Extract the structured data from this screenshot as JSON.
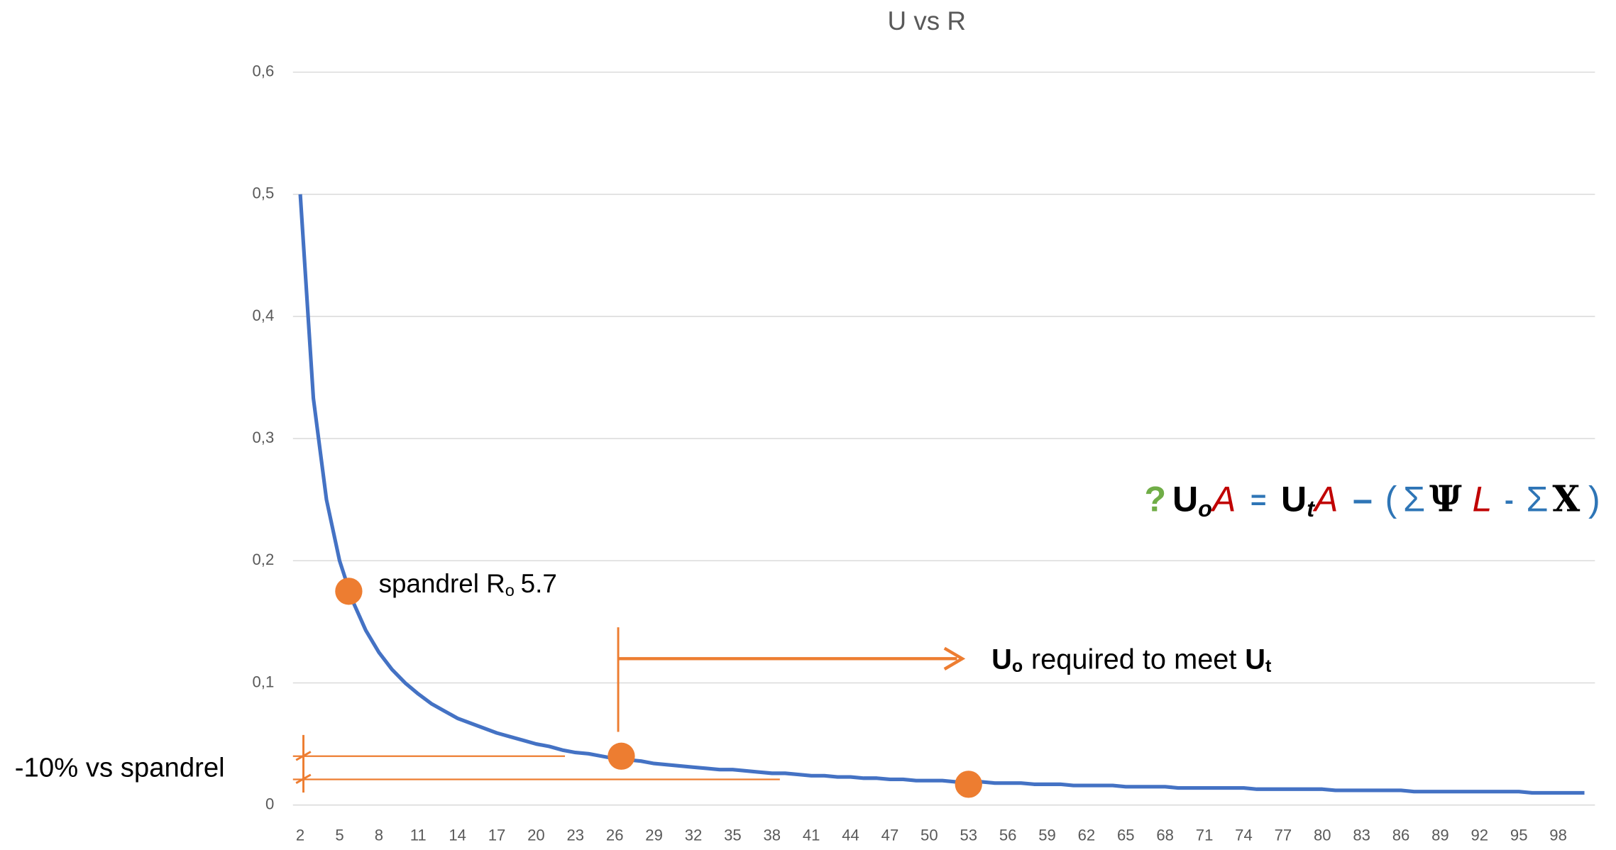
{
  "chart_data": {
    "type": "line",
    "title": "U vs R",
    "categories": [
      "2",
      null,
      null,
      "5",
      null,
      null,
      "8",
      null,
      null,
      "11",
      null,
      null,
      "14",
      null,
      null,
      "17",
      null,
      null,
      "20",
      null,
      null,
      "23",
      null,
      null,
      "26",
      null,
      null,
      "29",
      null,
      null,
      "32",
      null,
      null,
      "35",
      null,
      null,
      "38",
      null,
      null,
      "41",
      null,
      null,
      "44",
      null,
      null,
      "47",
      null,
      null,
      "50",
      null,
      null,
      "53",
      null,
      null,
      "56",
      null,
      null,
      "59",
      null,
      null,
      "62",
      null,
      null,
      "65",
      null,
      null,
      "68",
      null,
      null,
      "71",
      null,
      null,
      "74",
      null,
      null,
      "77",
      null,
      null,
      "80",
      null,
      null,
      "83",
      null,
      null,
      "86",
      null,
      null,
      "89",
      null,
      null,
      "92",
      null,
      null,
      "95",
      null,
      null,
      "98",
      null,
      null
    ],
    "series": [
      {
        "color": "#4472c4",
        "values": [
          0.5,
          0.333,
          0.25,
          0.2,
          0.167,
          0.143,
          0.125,
          0.111,
          0.1,
          0.091,
          0.083,
          0.077,
          0.071,
          0.067,
          0.063,
          0.059,
          0.056,
          0.053,
          0.05,
          0.048,
          0.045,
          0.043,
          0.042,
          0.04,
          0.038,
          0.037,
          0.036,
          0.034,
          0.033,
          0.032,
          0.031,
          0.03,
          0.029,
          0.029,
          0.028,
          0.027,
          0.026,
          0.026,
          0.025,
          0.024,
          0.024,
          0.023,
          0.023,
          0.022,
          0.022,
          0.021,
          0.021,
          0.02,
          0.02,
          0.02,
          0.019,
          0.019,
          0.019,
          0.018,
          0.018,
          0.018,
          0.017,
          0.017,
          0.017,
          0.016,
          0.016,
          0.016,
          0.016,
          0.015,
          0.015,
          0.015,
          0.015,
          0.014,
          0.014,
          0.014,
          0.014,
          0.014,
          0.014,
          0.013,
          0.013,
          0.013,
          0.013,
          0.013,
          0.013,
          0.012,
          0.012,
          0.012,
          0.012,
          0.012,
          0.012,
          0.011,
          0.011,
          0.011,
          0.011,
          0.011,
          0.011,
          0.011,
          0.011,
          0.011,
          0.01,
          0.01,
          0.01,
          0.01,
          0.01
        ]
      }
    ],
    "ylim": [
      0,
      0.6
    ],
    "yticks": [
      0,
      {
        "value": 0.1,
        "label": "0,1"
      },
      {
        "value": 0.2,
        "label": "0,2"
      },
      {
        "value": 0.3,
        "label": "0,3"
      },
      {
        "value": 0.4,
        "label": "0,4"
      },
      {
        "value": 0.5,
        "label": "0,5"
      },
      {
        "value": 0.6,
        "label": "0,6"
      }
    ],
    "grid": true,
    "marker_color": "#ed7d31",
    "markers": [
      {
        "x": 5.7,
        "y": 0.175
      },
      {
        "x": 26.5,
        "y": 0.04
      },
      {
        "x": 53,
        "y": 0.017
      }
    ],
    "reference_lines": [
      {
        "y": 0.04,
        "x_end": 22.2
      },
      {
        "y": 0.021,
        "x_end": 38.6
      }
    ],
    "spandrel_label": [
      "spandrel R",
      "o",
      "5.7"
    ],
    "required_label": [
      "U",
      "o",
      "required to meet",
      "U",
      "t"
    ],
    "bracket_label": "-10% vs spandrel",
    "formula": [
      "?",
      "U",
      "o",
      "A",
      "=",
      "U",
      "t",
      "A",
      "–",
      "(",
      "Σ",
      "Ψ",
      "L",
      "-",
      "Σ",
      "X",
      ")"
    ]
  }
}
